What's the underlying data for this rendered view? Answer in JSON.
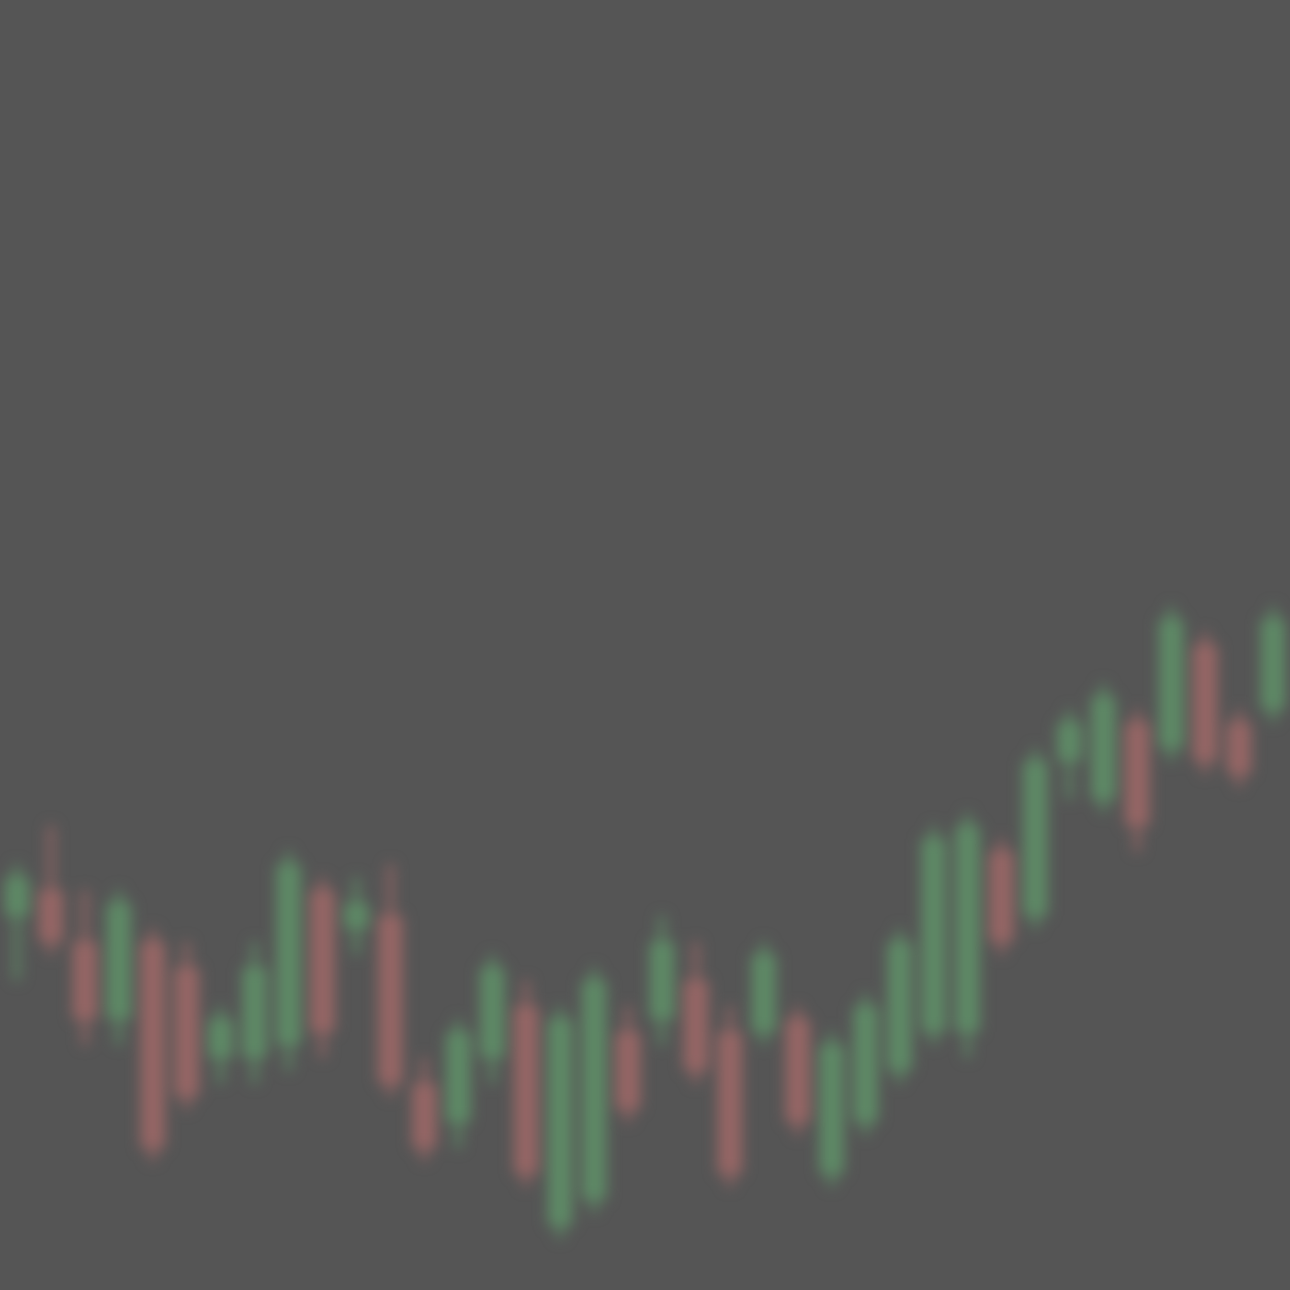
{
  "chart_data": {
    "type": "candlestick",
    "title": "",
    "xlabel": "",
    "ylabel": "",
    "background_color": "#555555",
    "up_color": "#5e8a66",
    "down_color": "#966665",
    "ylim": [
      0,
      1
    ],
    "grid": false,
    "legend": "none",
    "series": [
      {
        "open": 0.29,
        "high": 0.33,
        "low": 0.24,
        "close": 0.32
      },
      {
        "open": 0.31,
        "high": 0.36,
        "low": 0.26,
        "close": 0.27
      },
      {
        "open": 0.27,
        "high": 0.31,
        "low": 0.19,
        "close": 0.21
      },
      {
        "open": 0.21,
        "high": 0.31,
        "low": 0.19,
        "close": 0.3
      },
      {
        "open": 0.27,
        "high": 0.28,
        "low": 0.1,
        "close": 0.11
      },
      {
        "open": 0.25,
        "high": 0.27,
        "low": 0.14,
        "close": 0.15
      },
      {
        "open": 0.18,
        "high": 0.22,
        "low": 0.16,
        "close": 0.21
      },
      {
        "open": 0.18,
        "high": 0.27,
        "low": 0.16,
        "close": 0.25
      },
      {
        "open": 0.19,
        "high": 0.34,
        "low": 0.17,
        "close": 0.33
      },
      {
        "open": 0.31,
        "high": 0.32,
        "low": 0.18,
        "close": 0.2
      },
      {
        "open": 0.28,
        "high": 0.32,
        "low": 0.26,
        "close": 0.3
      },
      {
        "open": 0.29,
        "high": 0.33,
        "low": 0.15,
        "close": 0.16
      },
      {
        "open": 0.16,
        "high": 0.18,
        "low": 0.1,
        "close": 0.11
      },
      {
        "open": 0.13,
        "high": 0.21,
        "low": 0.11,
        "close": 0.2
      },
      {
        "open": 0.18,
        "high": 0.26,
        "low": 0.16,
        "close": 0.25
      },
      {
        "open": 0.22,
        "high": 0.24,
        "low": 0.08,
        "close": 0.09
      },
      {
        "open": 0.05,
        "high": 0.22,
        "low": 0.04,
        "close": 0.21
      },
      {
        "open": 0.07,
        "high": 0.25,
        "low": 0.06,
        "close": 0.24
      },
      {
        "open": 0.2,
        "high": 0.22,
        "low": 0.13,
        "close": 0.14
      },
      {
        "open": 0.21,
        "high": 0.29,
        "low": 0.19,
        "close": 0.27
      },
      {
        "open": 0.24,
        "high": 0.27,
        "low": 0.16,
        "close": 0.17
      },
      {
        "open": 0.2,
        "high": 0.22,
        "low": 0.08,
        "close": 0.09
      },
      {
        "open": 0.2,
        "high": 0.27,
        "low": 0.19,
        "close": 0.26
      },
      {
        "open": 0.21,
        "high": 0.22,
        "low": 0.12,
        "close": 0.13
      },
      {
        "open": 0.09,
        "high": 0.2,
        "low": 0.08,
        "close": 0.19
      },
      {
        "open": 0.13,
        "high": 0.23,
        "low": 0.12,
        "close": 0.22
      },
      {
        "open": 0.17,
        "high": 0.28,
        "low": 0.16,
        "close": 0.27
      },
      {
        "open": 0.2,
        "high": 0.36,
        "low": 0.19,
        "close": 0.35
      },
      {
        "open": 0.2,
        "high": 0.37,
        "low": 0.18,
        "close": 0.36
      },
      {
        "open": 0.34,
        "high": 0.35,
        "low": 0.26,
        "close": 0.27
      },
      {
        "open": 0.29,
        "high": 0.42,
        "low": 0.28,
        "close": 0.41
      },
      {
        "open": 0.41,
        "high": 0.45,
        "low": 0.38,
        "close": 0.44
      },
      {
        "open": 0.38,
        "high": 0.47,
        "low": 0.37,
        "close": 0.46
      },
      {
        "open": 0.44,
        "high": 0.45,
        "low": 0.34,
        "close": 0.36
      },
      {
        "open": 0.42,
        "high": 0.53,
        "low": 0.41,
        "close": 0.52
      },
      {
        "open": 0.5,
        "high": 0.51,
        "low": 0.4,
        "close": 0.41
      },
      {
        "open": 0.44,
        "high": 0.45,
        "low": 0.39,
        "close": 0.4
      },
      {
        "open": 0.45,
        "high": 0.53,
        "low": 0.44,
        "close": 0.52
      }
    ]
  }
}
